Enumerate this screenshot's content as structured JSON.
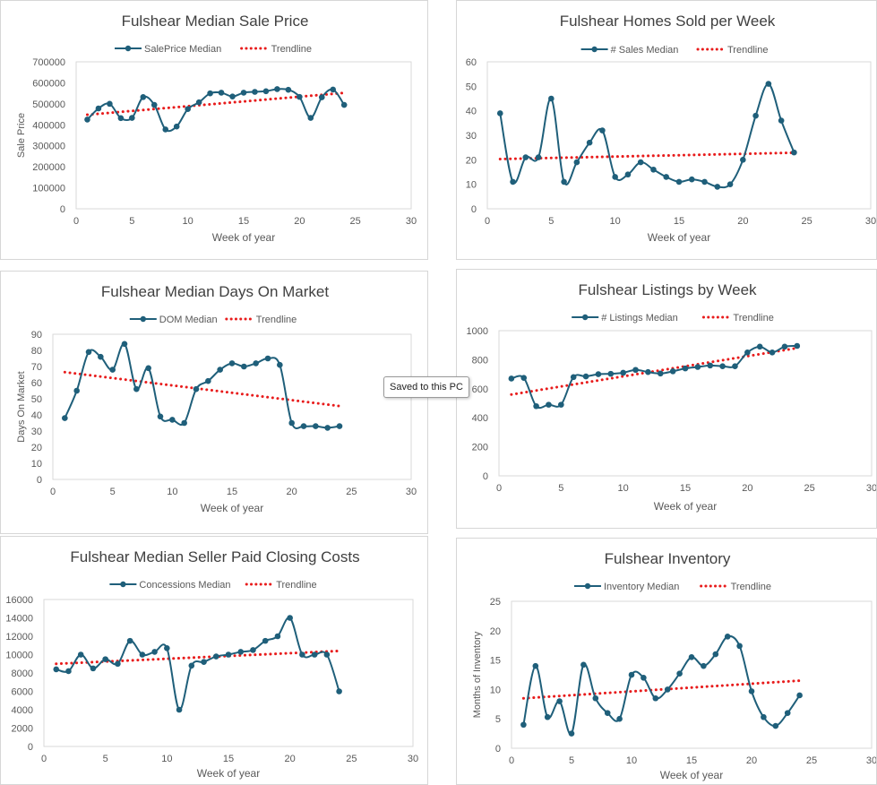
{
  "colors": {
    "series": "#1f5f7a",
    "trendline": "#e81c1c",
    "plot_border": "#d9d9d9",
    "text": "#595959",
    "title": "#404040"
  },
  "tooltip": {
    "text": "Saved to this PC"
  },
  "chart_data": [
    {
      "type": "line",
      "title": "Fulshear Median Sale Price",
      "xlabel": "Week of year",
      "ylabel": "Sale Price",
      "xlim": [
        0,
        30
      ],
      "ylim": [
        0,
        700000
      ],
      "x_ticks": [
        "0",
        "5",
        "10",
        "15",
        "20",
        "25",
        "30"
      ],
      "y_ticks": [
        "0",
        "100000",
        "200000",
        "300000",
        "400000",
        "500000",
        "600000",
        "700000"
      ],
      "grid": false,
      "legend_position": "top",
      "series": [
        {
          "name": "SalePrice Median",
          "x": [
            1,
            2,
            3,
            4,
            5,
            6,
            7,
            8,
            9,
            10,
            11,
            12,
            13,
            14,
            15,
            16,
            17,
            18,
            19,
            20,
            21,
            22,
            23,
            24
          ],
          "values": [
            425000,
            478000,
            500000,
            432000,
            433000,
            532000,
            495000,
            378000,
            392000,
            475000,
            507000,
            550000,
            553000,
            535000,
            553000,
            557000,
            560000,
            570000,
            567000,
            533000,
            433000,
            531000,
            568000,
            495000
          ]
        },
        {
          "name": "Trendline",
          "style": "dotted",
          "x": [
            1,
            24
          ],
          "values": [
            448000,
            552000
          ]
        }
      ]
    },
    {
      "type": "line",
      "title": "Fulshear Homes Sold per Week",
      "xlabel": "Week of year",
      "ylabel": "",
      "xlim": [
        0,
        30
      ],
      "ylim": [
        0,
        60
      ],
      "x_ticks": [
        "0",
        "5",
        "10",
        "15",
        "20",
        "25",
        "30"
      ],
      "y_ticks": [
        "0",
        "10",
        "20",
        "30",
        "40",
        "50",
        "60"
      ],
      "grid": false,
      "legend_position": "top",
      "series": [
        {
          "name": "# Sales Median",
          "x": [
            1,
            2,
            3,
            4,
            5,
            6,
            7,
            8,
            9,
            10,
            11,
            12,
            13,
            14,
            15,
            16,
            17,
            18,
            19,
            20,
            21,
            22,
            23,
            24
          ],
          "values": [
            39,
            11,
            21,
            21,
            45,
            11,
            19,
            27,
            32,
            13,
            14,
            19,
            16,
            13,
            11,
            12,
            11,
            9,
            10,
            20,
            38,
            51,
            36,
            23
          ]
        },
        {
          "name": "Trendline",
          "style": "dotted",
          "x": [
            1,
            24
          ],
          "values": [
            20.3,
            22.9
          ]
        }
      ]
    },
    {
      "type": "line",
      "title": "Fulshear Median Days On Market",
      "xlabel": "Week of year",
      "ylabel": "Days On Market",
      "xlim": [
        0,
        30
      ],
      "ylim": [
        0,
        90
      ],
      "x_ticks": [
        "0",
        "5",
        "10",
        "15",
        "20",
        "25",
        "30"
      ],
      "y_ticks": [
        "0",
        "10",
        "20",
        "30",
        "40",
        "50",
        "60",
        "70",
        "80",
        "90"
      ],
      "grid": false,
      "legend_position": "top",
      "series": [
        {
          "name": "DOM Median",
          "x": [
            1,
            2,
            3,
            4,
            5,
            6,
            7,
            8,
            9,
            10,
            11,
            12,
            13,
            14,
            15,
            16,
            17,
            18,
            19,
            20,
            21,
            22,
            23,
            24
          ],
          "values": [
            38,
            55,
            79,
            76,
            68,
            84,
            56,
            69,
            39,
            37,
            35,
            56,
            61,
            68,
            72,
            70,
            72,
            75,
            71,
            35,
            33,
            33,
            32,
            33
          ]
        },
        {
          "name": "Trendline",
          "style": "dotted",
          "x": [
            1,
            24
          ],
          "values": [
            66.5,
            45.5
          ]
        }
      ]
    },
    {
      "type": "line",
      "title": "Fulshear Listings by Week",
      "xlabel": "Week of year",
      "ylabel": "",
      "xlim": [
        0,
        30
      ],
      "ylim": [
        0,
        1000
      ],
      "x_ticks": [
        "0",
        "5",
        "10",
        "15",
        "20",
        "25",
        "30"
      ],
      "y_ticks": [
        "0",
        "200",
        "400",
        "600",
        "800",
        "1000"
      ],
      "grid": false,
      "legend_position": "top",
      "series": [
        {
          "name": "# Listings Median",
          "x": [
            1,
            2,
            3,
            4,
            5,
            6,
            7,
            8,
            9,
            10,
            11,
            12,
            13,
            14,
            15,
            16,
            17,
            18,
            19,
            20,
            21,
            22,
            23,
            24
          ],
          "values": [
            670,
            675,
            480,
            490,
            490,
            680,
            685,
            700,
            703,
            710,
            730,
            715,
            705,
            720,
            740,
            750,
            760,
            755,
            755,
            850,
            890,
            850,
            890,
            895
          ]
        },
        {
          "name": "Trendline",
          "style": "dotted",
          "x": [
            1,
            24
          ],
          "values": [
            560,
            880
          ]
        }
      ]
    },
    {
      "type": "line",
      "title": "Fulshear Median Seller Paid Closing Costs",
      "xlabel": "Week of year",
      "ylabel": "",
      "xlim": [
        0,
        30
      ],
      "ylim": [
        0,
        16000
      ],
      "x_ticks": [
        "0",
        "5",
        "10",
        "15",
        "20",
        "25",
        "30"
      ],
      "y_ticks": [
        "0",
        "2000",
        "4000",
        "6000",
        "8000",
        "10000",
        "12000",
        "14000",
        "16000"
      ],
      "grid": false,
      "legend_position": "top",
      "series": [
        {
          "name": "Concessions Median",
          "x": [
            1,
            2,
            3,
            4,
            5,
            6,
            7,
            8,
            9,
            10,
            11,
            12,
            13,
            14,
            15,
            16,
            17,
            18,
            19,
            20,
            21,
            22,
            23,
            24
          ],
          "values": [
            8400,
            8200,
            10000,
            8500,
            9500,
            9000,
            11500,
            10000,
            10300,
            10700,
            4000,
            8800,
            9200,
            9800,
            10000,
            10300,
            10500,
            11500,
            12000,
            14000,
            10000,
            10000,
            10000,
            6000
          ]
        },
        {
          "name": "Trendline",
          "style": "dotted",
          "x": [
            1,
            24
          ],
          "values": [
            9000,
            10400
          ]
        }
      ]
    },
    {
      "type": "line",
      "title": "Fulshear Inventory",
      "xlabel": "Week of year",
      "ylabel": "Months of Inventory",
      "xlim": [
        0,
        30
      ],
      "ylim": [
        0,
        25
      ],
      "x_ticks": [
        "0",
        "5",
        "10",
        "15",
        "20",
        "25",
        "30"
      ],
      "y_ticks": [
        "0",
        "5",
        "10",
        "15",
        "20",
        "25"
      ],
      "grid": false,
      "legend_position": "top",
      "series": [
        {
          "name": "Inventory Median",
          "x": [
            1,
            2,
            3,
            4,
            5,
            6,
            7,
            8,
            9,
            10,
            11,
            12,
            13,
            14,
            15,
            16,
            17,
            18,
            19,
            20,
            21,
            22,
            23,
            24
          ],
          "values": [
            4,
            14,
            5.3,
            8,
            2.5,
            14.2,
            8.5,
            6,
            5,
            12.5,
            12,
            8.5,
            10,
            12.7,
            15.5,
            14,
            16,
            19,
            17.4,
            9.7,
            5.3,
            3.8,
            6,
            9
          ]
        },
        {
          "name": "Trendline",
          "style": "dotted",
          "x": [
            1,
            24
          ],
          "values": [
            8.5,
            11.5
          ]
        }
      ]
    }
  ]
}
